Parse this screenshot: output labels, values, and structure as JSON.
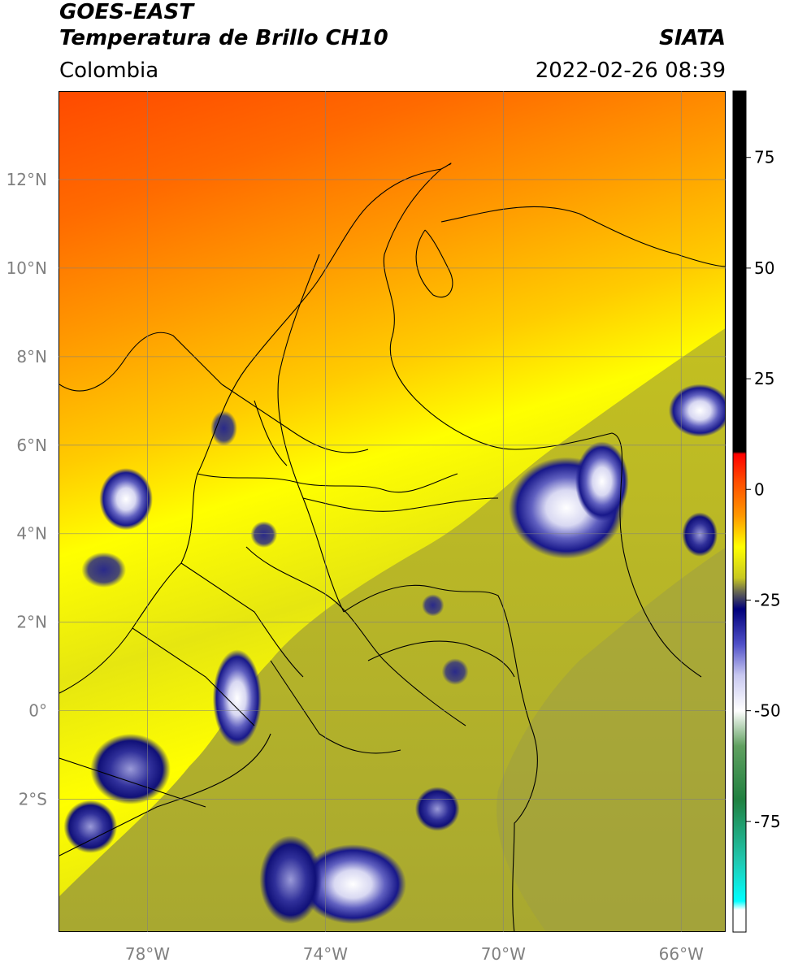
{
  "header": {
    "title_line1": "GOES-EAST",
    "title_line2": "Temperatura de Brillo CH10",
    "source": "SIATA",
    "region": "Colombia",
    "timestamp": "2022-02-26 08:39"
  },
  "map": {
    "lon_range": [
      -80,
      -65
    ],
    "lat_range": [
      -5,
      14
    ],
    "lon_ticks": [
      {
        "value": -78,
        "label": "78°W"
      },
      {
        "value": -74,
        "label": "74°W"
      },
      {
        "value": -70,
        "label": "70°W"
      },
      {
        "value": -66,
        "label": "66°W"
      }
    ],
    "lat_ticks": [
      {
        "value": 12,
        "label": "12°N"
      },
      {
        "value": 10,
        "label": "10°N"
      },
      {
        "value": 8,
        "label": "8°N"
      },
      {
        "value": 6,
        "label": "6°N"
      },
      {
        "value": 4,
        "label": "4°N"
      },
      {
        "value": 2,
        "label": "2°N"
      },
      {
        "value": 0,
        "label": "0°"
      },
      {
        "value": -2,
        "label": "2°S"
      }
    ],
    "gridline_color": "#808080",
    "clouds": [
      {
        "lon": -68.6,
        "lat": 4.6,
        "rx": 1.3,
        "ry": 1.15,
        "intensity": "deep"
      },
      {
        "lon": -67.8,
        "lat": 5.2,
        "rx": 0.6,
        "ry": 0.9,
        "intensity": "deep"
      },
      {
        "lon": -65.6,
        "lat": 6.8,
        "rx": 0.7,
        "ry": 0.6,
        "intensity": "deep"
      },
      {
        "lon": -65.6,
        "lat": 4.0,
        "rx": 0.4,
        "ry": 0.5,
        "intensity": "moderate"
      },
      {
        "lon": -78.5,
        "lat": 4.8,
        "rx": 0.6,
        "ry": 0.7,
        "intensity": "deep"
      },
      {
        "lon": -76.0,
        "lat": 0.3,
        "rx": 0.55,
        "ry": 1.1,
        "intensity": "deep"
      },
      {
        "lon": -73.4,
        "lat": -3.9,
        "rx": 1.2,
        "ry": 0.9,
        "intensity": "deep"
      },
      {
        "lon": -71.5,
        "lat": -2.2,
        "rx": 0.5,
        "ry": 0.5,
        "intensity": "moderate"
      },
      {
        "lon": -78.4,
        "lat": -1.3,
        "rx": 0.9,
        "ry": 0.8,
        "intensity": "moderate"
      },
      {
        "lon": -79.3,
        "lat": -2.6,
        "rx": 0.6,
        "ry": 0.6,
        "intensity": "moderate"
      },
      {
        "lon": -79.0,
        "lat": 3.2,
        "rx": 0.5,
        "ry": 0.4,
        "intensity": "light"
      },
      {
        "lon": -76.3,
        "lat": 6.4,
        "rx": 0.3,
        "ry": 0.4,
        "intensity": "light"
      },
      {
        "lon": -75.4,
        "lat": 4.0,
        "rx": 0.3,
        "ry": 0.3,
        "intensity": "light"
      },
      {
        "lon": -71.1,
        "lat": 0.9,
        "rx": 0.3,
        "ry": 0.3,
        "intensity": "light"
      },
      {
        "lon": -74.8,
        "lat": -3.8,
        "rx": 0.7,
        "ry": 1.0,
        "intensity": "moderate"
      },
      {
        "lon": -71.6,
        "lat": 2.4,
        "rx": 0.25,
        "ry": 0.25,
        "intensity": "light"
      }
    ]
  },
  "colorbar": {
    "range": [
      -100,
      90
    ],
    "ticks": [
      75,
      50,
      25,
      0,
      -25,
      -50,
      -75
    ],
    "stops": [
      {
        "value": 90,
        "color": "#000000"
      },
      {
        "value": 8.5,
        "color": "#000000"
      },
      {
        "value": 8,
        "color": "#ff0000"
      },
      {
        "value": 2,
        "color": "#ff4a00"
      },
      {
        "value": -6,
        "color": "#ff9900"
      },
      {
        "value": -13,
        "color": "#ffff00"
      },
      {
        "value": -20,
        "color": "#c8c820"
      },
      {
        "value": -23,
        "color": "#6b6b50"
      },
      {
        "value": -27,
        "color": "#00007a"
      },
      {
        "value": -35,
        "color": "#5050c8"
      },
      {
        "value": -42,
        "color": "#c8c8f0"
      },
      {
        "value": -50,
        "color": "#ffffff"
      },
      {
        "value": -58,
        "color": "#60a060"
      },
      {
        "value": -70,
        "color": "#208040"
      },
      {
        "value": -84,
        "color": "#20c8b0"
      },
      {
        "value": -93,
        "color": "#00ffff"
      },
      {
        "value": -95,
        "color": "#ffffff"
      },
      {
        "value": -100,
        "color": "#ffffff"
      }
    ]
  }
}
